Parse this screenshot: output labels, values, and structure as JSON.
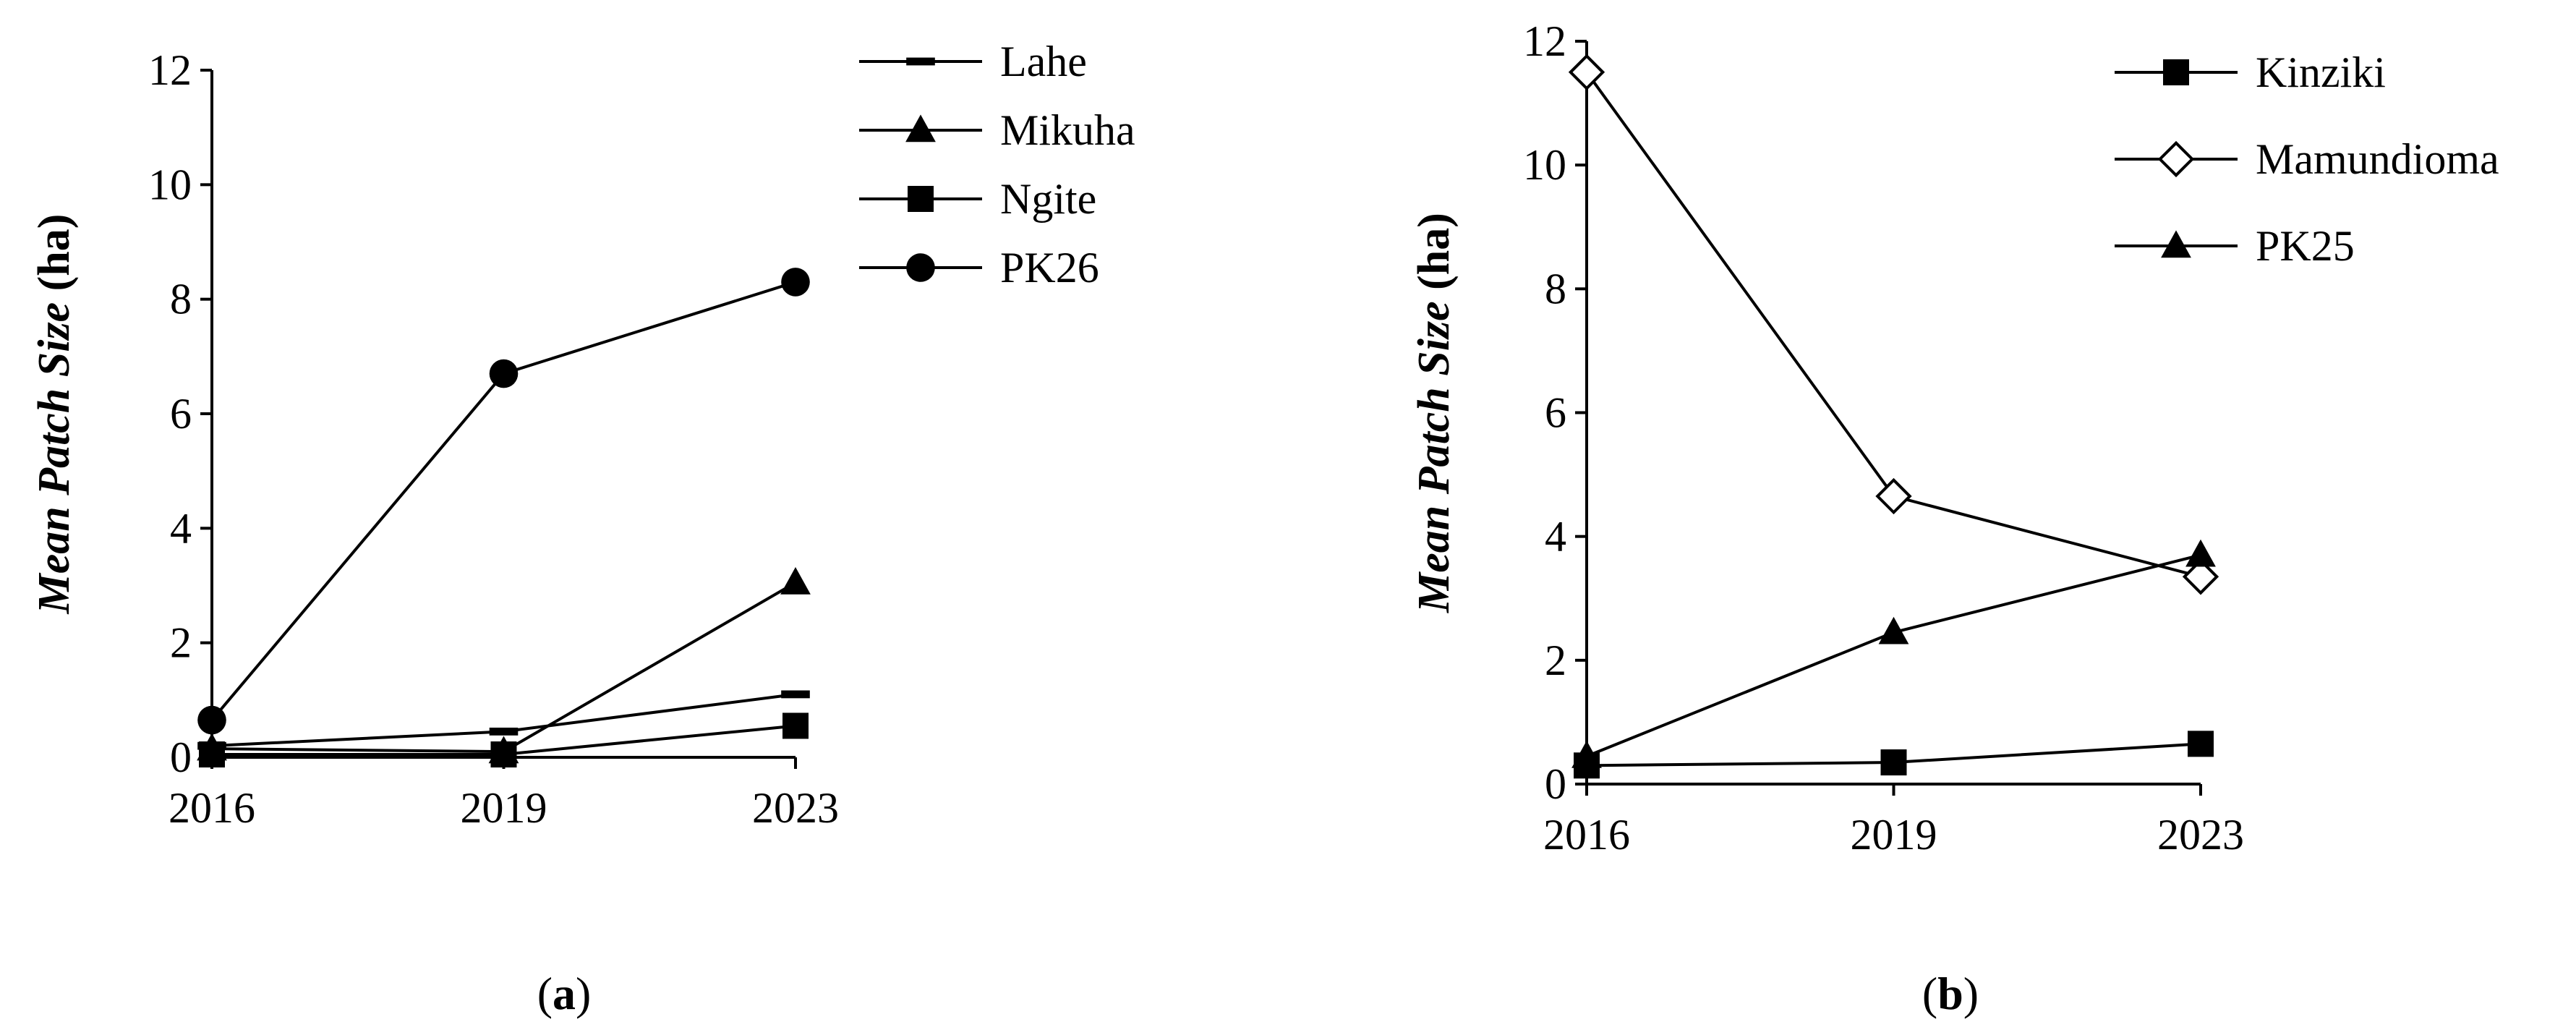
{
  "chart_data": [
    {
      "type": "line",
      "caption": "a",
      "ylabel_main": "Mean Patch Size",
      "ylabel_unit": "(ha)",
      "x": [
        "2016",
        "2019",
        "2023"
      ],
      "ylim": [
        0,
        12
      ],
      "yticks": [
        "0",
        "2",
        "4",
        "6",
        "8",
        "10",
        "12"
      ],
      "legend_position": "top-right",
      "grid": false,
      "series": [
        {
          "name": "Lahe",
          "marker": "dash",
          "values": [
            0.2,
            0.45,
            1.1
          ]
        },
        {
          "name": "Mikuha",
          "marker": "triangle",
          "values": [
            0.15,
            0.1,
            3.05
          ]
        },
        {
          "name": "Ngite",
          "marker": "square",
          "values": [
            0.05,
            0.05,
            0.55
          ]
        },
        {
          "name": "PK26",
          "marker": "circle",
          "values": [
            0.65,
            6.7,
            8.3
          ]
        }
      ]
    },
    {
      "type": "line",
      "caption": "b",
      "ylabel_main": "Mean Patch Size",
      "ylabel_unit": "(ha)",
      "x": [
        "2016",
        "2019",
        "2023"
      ],
      "ylim": [
        0,
        12
      ],
      "yticks": [
        "0",
        "2",
        "4",
        "6",
        "8",
        "10",
        "12"
      ],
      "legend_position": "top-right",
      "grid": false,
      "series": [
        {
          "name": "Kinziki",
          "marker": "square",
          "values": [
            0.3,
            0.35,
            0.65
          ]
        },
        {
          "name": "Mamundioma",
          "marker": "diamond-open",
          "values": [
            11.5,
            4.65,
            3.35
          ]
        },
        {
          "name": "PK25",
          "marker": "triangle",
          "values": [
            0.45,
            2.45,
            3.7
          ]
        }
      ]
    }
  ]
}
